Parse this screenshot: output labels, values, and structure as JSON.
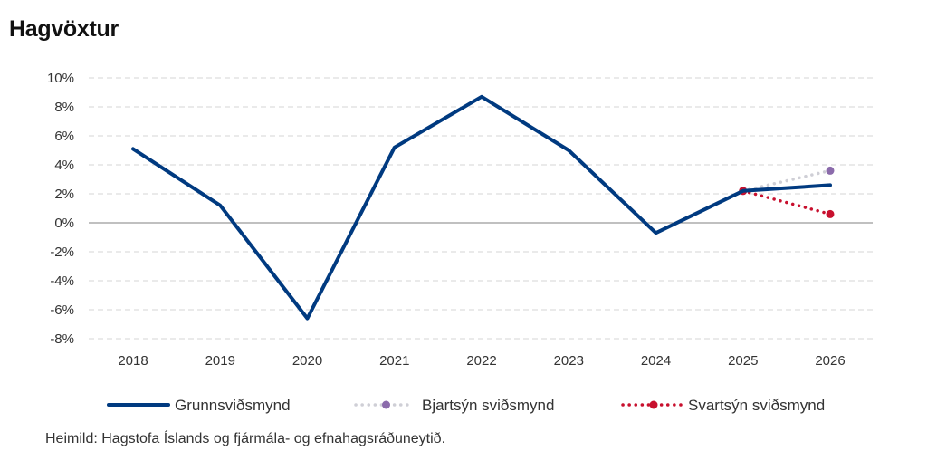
{
  "title": "Hagvöxtur",
  "source": "Heimild: Hagstofa Íslands og fjármála- og efnahagsráðuneytið.",
  "chart_data": {
    "type": "line",
    "title": "Hagvöxtur",
    "x": [
      "2018",
      "2019",
      "2020",
      "2021",
      "2022",
      "2023",
      "2024",
      "2025",
      "2026"
    ],
    "yticks": [
      "10%",
      "8%",
      "6%",
      "4%",
      "2%",
      "0%",
      "-2%",
      "-4%",
      "-6%",
      "-8%"
    ],
    "ylim": [
      -8,
      10
    ],
    "grid": true,
    "legend_position": "bottom",
    "series": [
      {
        "name": "Grunnsviðsmynd",
        "color": "#003a80",
        "style": "solid",
        "x": [
          "2018",
          "2019",
          "2020",
          "2021",
          "2022",
          "2023",
          "2024",
          "2025",
          "2026"
        ],
        "values": [
          5.1,
          1.2,
          -6.6,
          5.2,
          8.7,
          5.0,
          -0.7,
          2.2,
          2.6
        ]
      },
      {
        "name": "Bjartsýn sviðsmynd",
        "color": "#cfcfd6",
        "marker_color": "#8b6bab",
        "style": "dotted",
        "x": [
          "2025",
          "2026"
        ],
        "values": [
          2.2,
          3.6
        ]
      },
      {
        "name": "Svartsýn sviðsmynd",
        "color": "#c8102e",
        "marker_color": "#c8102e",
        "style": "dotted",
        "x": [
          "2025",
          "2026"
        ],
        "values": [
          2.2,
          0.6
        ]
      }
    ]
  }
}
